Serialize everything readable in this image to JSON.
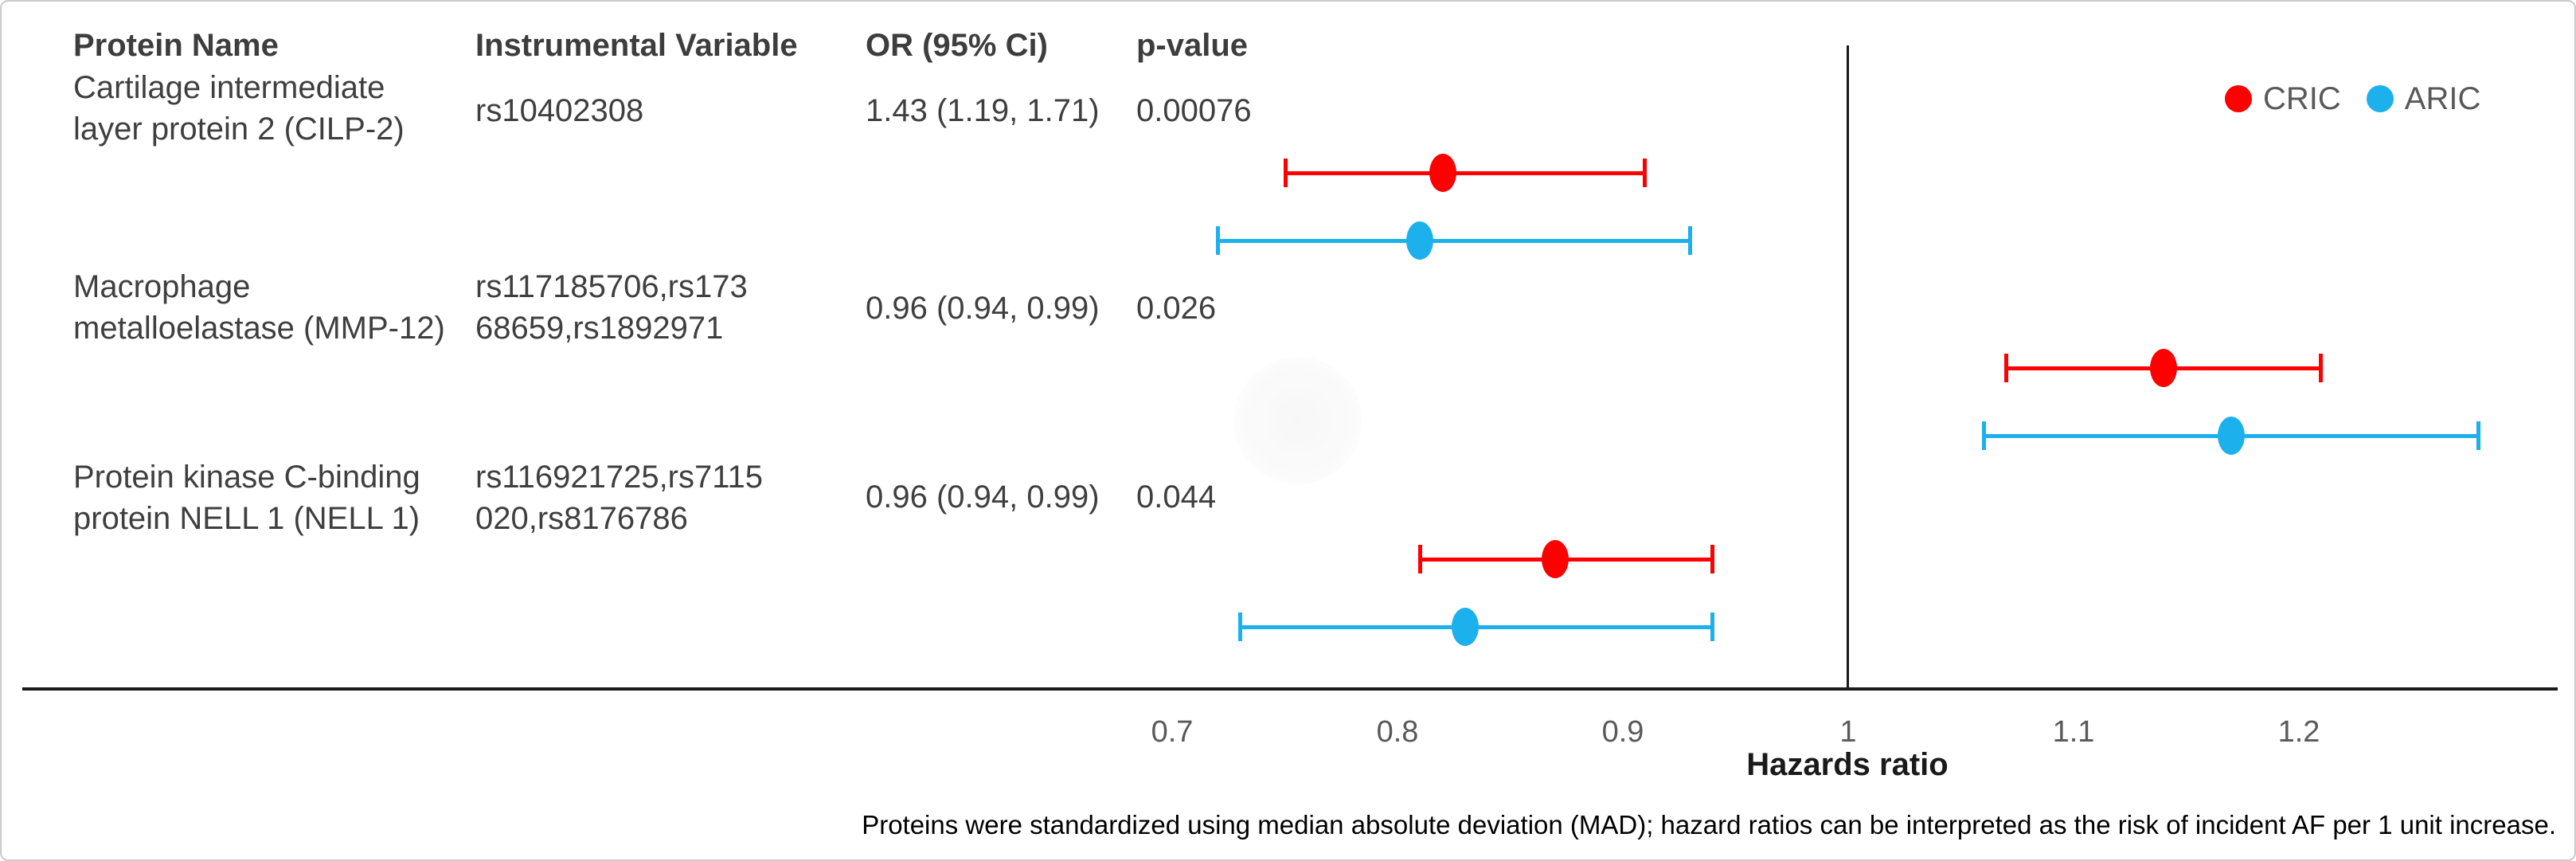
{
  "table": {
    "headers": {
      "protein": "Protein Name",
      "iv": "Instrumental Variable",
      "or": "OR (95% Ci)",
      "p": "p-value"
    },
    "rows": [
      {
        "protein_lines": [
          "Cartilage intermediate",
          "layer protein 2 (CILP-2)"
        ],
        "iv_lines": [
          "rs10402308"
        ],
        "or_ci": "1.43 (1.19, 1.71)",
        "p_value": "0.00076"
      },
      {
        "protein_lines": [
          "Macrophage",
          "metalloelastase (MMP-12)"
        ],
        "iv_lines": [
          "rs117185706,rs173",
          "68659,rs1892971"
        ],
        "or_ci": "0.96 (0.94, 0.99)",
        "p_value": "0.026"
      },
      {
        "protein_lines": [
          "Protein kinase C-binding",
          "protein NELL 1 (NELL 1)"
        ],
        "iv_lines": [
          "rs116921725,rs7115",
          "020,rs8176786"
        ],
        "or_ci": "0.96 (0.94, 0.99)",
        "p_value": "0.044"
      }
    ]
  },
  "footnote": "Proteins were standardized using median absolute deviation (MAD); hazard ratios can be interpreted as the risk of incident AF per 1 unit increase.",
  "colors": {
    "cric": "#ff0000",
    "aric": "#1cb0ec",
    "axis": "#1a1a1a",
    "tick_text": "#595959",
    "table_text": "#3f3f3f"
  },
  "chart_data": {
    "type": "scatter",
    "subtype": "forest-plot-with-error-bars",
    "xlabel": "Hazards ratio",
    "x_ticks": [
      {
        "label": "0.7",
        "value": 0.7
      },
      {
        "label": "0.8",
        "value": 0.8
      },
      {
        "label": "0.9",
        "value": 0.9
      },
      {
        "label": "1",
        "value": 1.0
      },
      {
        "label": "1.1",
        "value": 1.1
      },
      {
        "label": "1.2",
        "value": 1.2
      }
    ],
    "xlim": [
      0.65,
      1.32
    ],
    "reference_line_x": 1.0,
    "grid": false,
    "legend_position": "top-right",
    "categories": [
      "CILP-2",
      "MMP-12",
      "NELL 1"
    ],
    "series": [
      {
        "name": "CRIC",
        "color": "#ff0000",
        "points": [
          {
            "category": "CILP-2",
            "hr": 0.82,
            "lo": 0.75,
            "hi": 0.91
          },
          {
            "category": "MMP-12",
            "hr": 1.14,
            "lo": 1.07,
            "hi": 1.21
          },
          {
            "category": "NELL 1",
            "hr": 0.87,
            "lo": 0.81,
            "hi": 0.94
          }
        ]
      },
      {
        "name": "ARIC",
        "color": "#1cb0ec",
        "points": [
          {
            "category": "CILP-2",
            "hr": 0.81,
            "lo": 0.72,
            "hi": 0.93
          },
          {
            "category": "MMP-12",
            "hr": 1.17,
            "lo": 1.06,
            "hi": 1.28
          },
          {
            "category": "NELL 1",
            "hr": 0.83,
            "lo": 0.73,
            "hi": 0.94
          }
        ]
      }
    ]
  }
}
